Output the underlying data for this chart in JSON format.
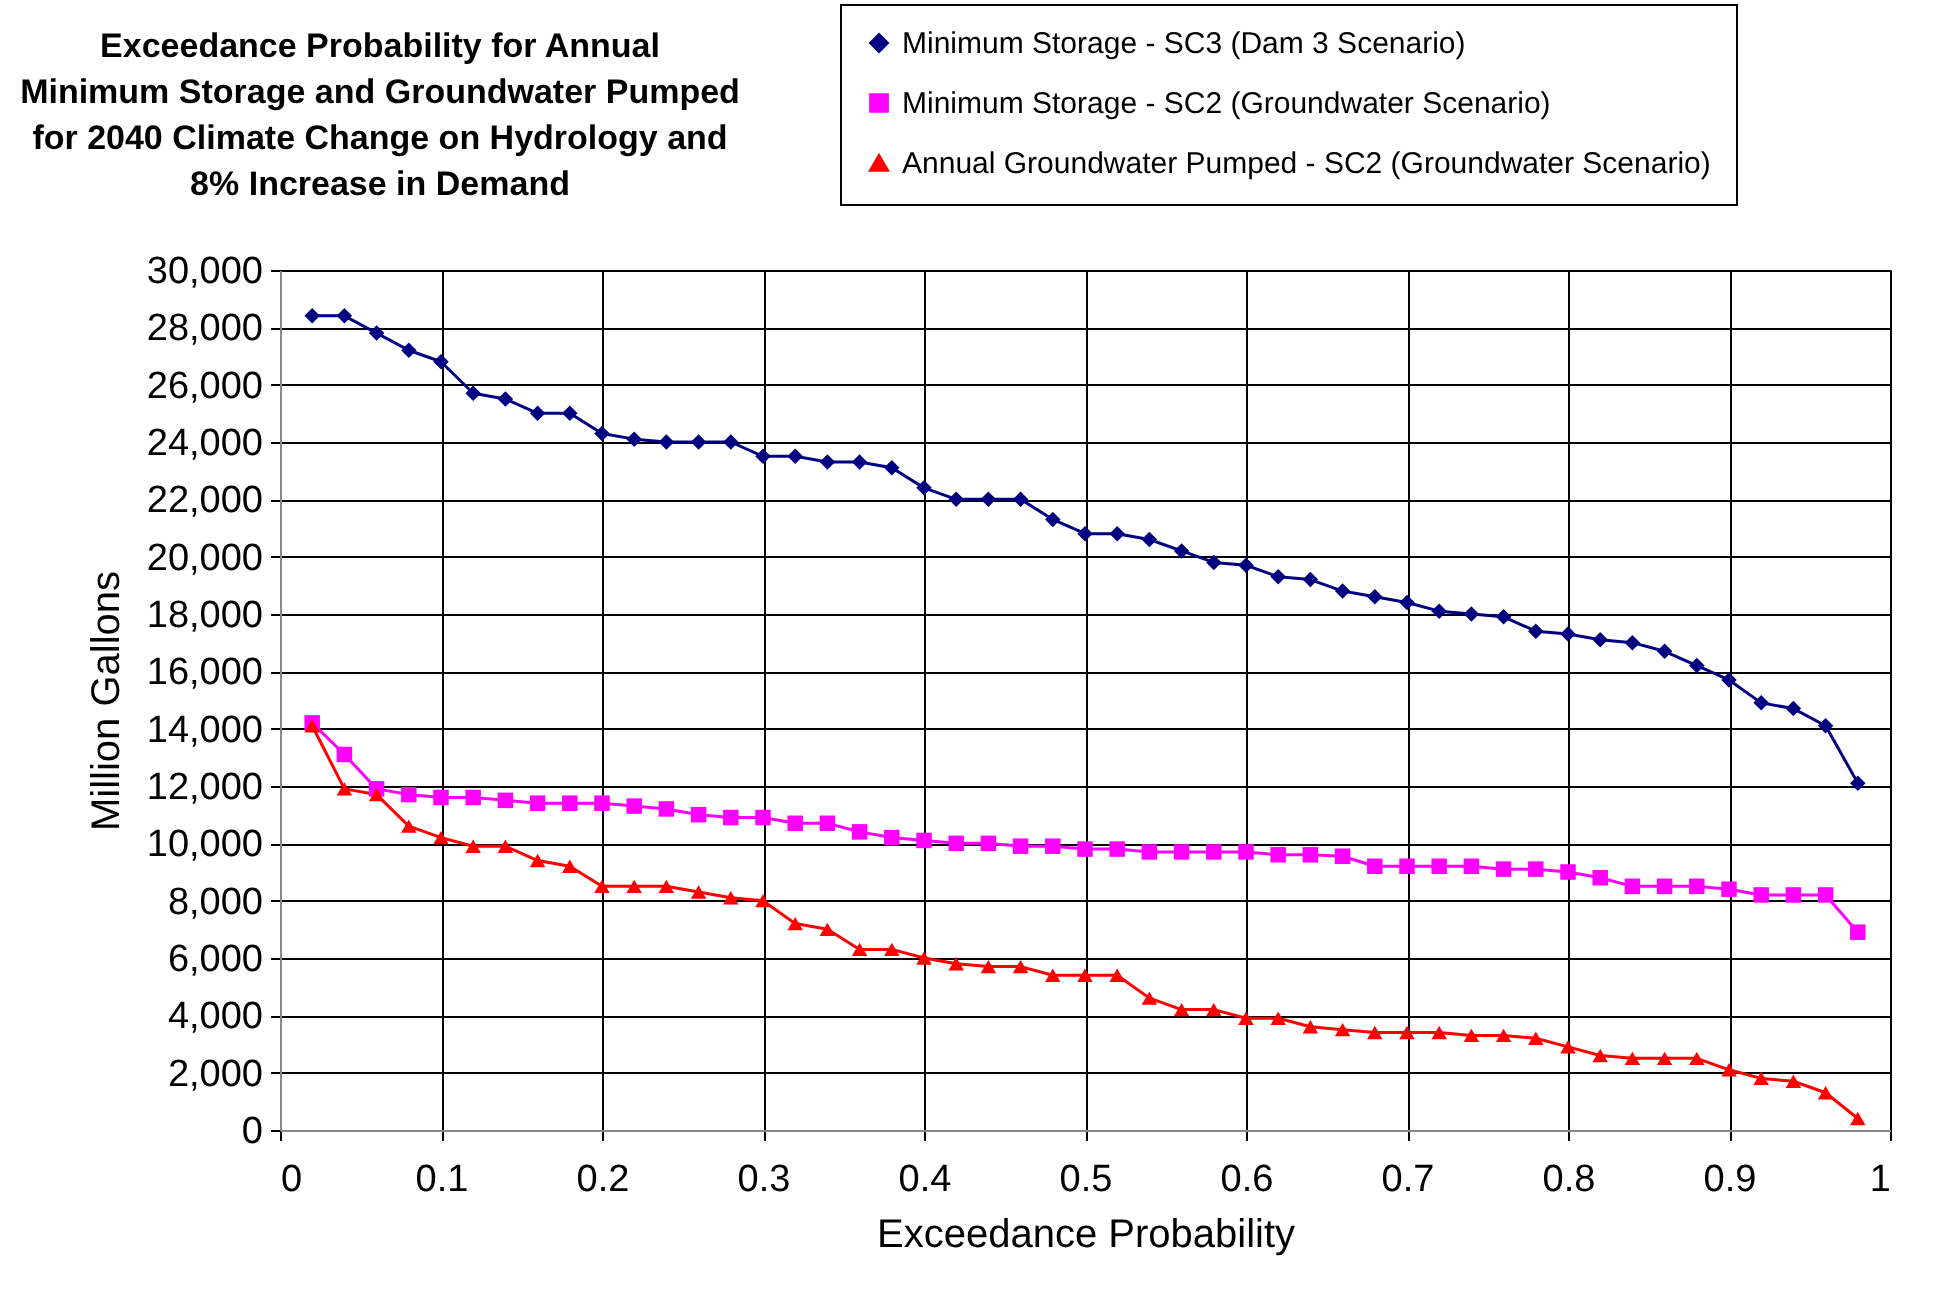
{
  "chart_data": {
    "type": "line",
    "title": "Exceedance Probability for Annual Minimum Storage and Groundwater Pumped for 2040 Climate Change on Hydrology and 8% Increase in Demand",
    "xlabel": "Exceedance Probability",
    "ylabel": "Million Gallons",
    "x": [
      0.02,
      0.04,
      0.06,
      0.08,
      0.1,
      0.12,
      0.14,
      0.16,
      0.18,
      0.2,
      0.22,
      0.24,
      0.26,
      0.28,
      0.3,
      0.32,
      0.34,
      0.36,
      0.38,
      0.4,
      0.42,
      0.44,
      0.46,
      0.48,
      0.5,
      0.52,
      0.54,
      0.56,
      0.58,
      0.6,
      0.62,
      0.64,
      0.66,
      0.68,
      0.7,
      0.72,
      0.74,
      0.76,
      0.78,
      0.8,
      0.82,
      0.84,
      0.86,
      0.88,
      0.9,
      0.92,
      0.94,
      0.96,
      0.98
    ],
    "series": [
      {
        "name": "Minimum Storage - SC3 (Dam 3 Scenario)",
        "color": "#000080",
        "marker": "diamond",
        "values": [
          28400,
          28400,
          27800,
          27200,
          26800,
          25700,
          25500,
          25000,
          25000,
          24300,
          24100,
          24000,
          24000,
          24000,
          23500,
          23500,
          23300,
          23300,
          23100,
          22400,
          22000,
          22000,
          22000,
          21300,
          20800,
          20800,
          20600,
          20200,
          19800,
          19700,
          19300,
          19200,
          18800,
          18600,
          18400,
          18100,
          18000,
          17900,
          17400,
          17300,
          17100,
          17000,
          16700,
          16200,
          15700,
          14900,
          14700,
          14100,
          12100
        ]
      },
      {
        "name": "Minimum Storage - SC2 (Groundwater Scenario)",
        "color": "#ff00ff",
        "marker": "square",
        "values": [
          14200,
          13100,
          11900,
          11700,
          11600,
          11600,
          11500,
          11400,
          11400,
          11400,
          11300,
          11200,
          11000,
          10900,
          10900,
          10700,
          10700,
          10400,
          10200,
          10100,
          10000,
          10000,
          9900,
          9900,
          9800,
          9800,
          9700,
          9700,
          9700,
          9700,
          9600,
          9600,
          9550,
          9200,
          9200,
          9200,
          9200,
          9100,
          9100,
          9000,
          8800,
          8500,
          8500,
          8500,
          8400,
          8200,
          8200,
          8200,
          6900
        ]
      },
      {
        "name": "Annual Groundwater Pumped - SC2 (Groundwater Scenario)",
        "color": "#ff0000",
        "marker": "triangle",
        "values": [
          14100,
          11900,
          11700,
          10600,
          10200,
          9900,
          9900,
          9400,
          9200,
          8500,
          8500,
          8500,
          8300,
          8100,
          8000,
          7200,
          7000,
          6300,
          6300,
          6000,
          5800,
          5700,
          5700,
          5400,
          5400,
          5400,
          4600,
          4200,
          4200,
          3900,
          3900,
          3600,
          3500,
          3400,
          3400,
          3400,
          3300,
          3300,
          3200,
          2900,
          2600,
          2500,
          2500,
          2500,
          2100,
          1800,
          1700,
          1300,
          400
        ]
      }
    ],
    "xlim": [
      0,
      1
    ],
    "xticks": [
      0,
      0.1,
      0.2,
      0.3,
      0.4,
      0.5,
      0.6,
      0.7,
      0.8,
      0.9,
      1
    ],
    "ylim": [
      0,
      30000
    ],
    "yticks": [
      0,
      {
        "value": 2000,
        "label": "2,000"
      },
      {
        "value": 4000,
        "label": "4,000"
      },
      {
        "value": 6000,
        "label": "6,000"
      },
      {
        "value": 8000,
        "label": "8,000"
      },
      {
        "value": 10000,
        "label": "10,000"
      },
      {
        "value": 12000,
        "label": "12,000"
      },
      {
        "value": 14000,
        "label": "14,000"
      },
      {
        "value": 16000,
        "label": "16,000"
      },
      {
        "value": 18000,
        "label": "18,000"
      },
      {
        "value": 20000,
        "label": "20,000"
      },
      {
        "value": 22000,
        "label": "22,000"
      },
      {
        "value": 24000,
        "label": "24,000"
      },
      {
        "value": 26000,
        "label": "26,000"
      },
      {
        "value": 28000,
        "label": "28,000"
      },
      {
        "value": 30000,
        "label": "30,000"
      }
    ],
    "grid": true,
    "legend": "top right",
    "line_style": "solid"
  }
}
